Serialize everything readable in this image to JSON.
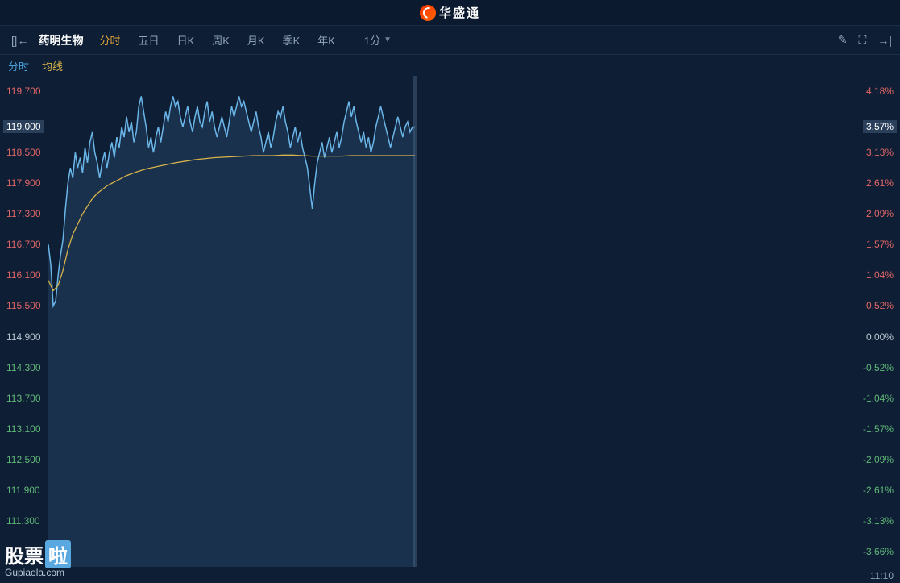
{
  "brand": "华盛通",
  "toolbar": {
    "stock_name": "药明生物",
    "tabs": [
      "分时",
      "五日",
      "日K",
      "周K",
      "月K",
      "季K",
      "年K"
    ],
    "active_tab_index": 0,
    "interval_label": "1分"
  },
  "legend": {
    "fenshi": "分时",
    "junxian": "均线"
  },
  "chart": {
    "type": "intraday-line",
    "background": "#0e1e35",
    "price_line_color": "#6bb6e8",
    "ma_line_color": "#d8b24a",
    "area_fill": "rgba(80,140,190,0.18)",
    "ref_line_color": "#d89a3a",
    "up_color": "#e06666",
    "down_color": "#5fb878",
    "neutral_color": "#b8c4d0",
    "prev_close": 114.9,
    "current_price": 119.0,
    "current_pct": "3.57%",
    "y_left_ticks": [
      {
        "v": 119.7,
        "label": "119.700",
        "color": "#e06666"
      },
      {
        "v": 119.0,
        "label": "119.000",
        "color": "#e06666",
        "tag": true
      },
      {
        "v": 118.5,
        "label": "118.500",
        "color": "#e06666"
      },
      {
        "v": 117.9,
        "label": "117.900",
        "color": "#e06666"
      },
      {
        "v": 117.3,
        "label": "117.300",
        "color": "#e06666"
      },
      {
        "v": 116.7,
        "label": "116.700",
        "color": "#e06666"
      },
      {
        "v": 116.1,
        "label": "116.100",
        "color": "#e06666"
      },
      {
        "v": 115.5,
        "label": "115.500",
        "color": "#e06666"
      },
      {
        "v": 114.9,
        "label": "114.900",
        "color": "#b8c4d0"
      },
      {
        "v": 114.3,
        "label": "114.300",
        "color": "#5fb878"
      },
      {
        "v": 113.7,
        "label": "113.700",
        "color": "#5fb878"
      },
      {
        "v": 113.1,
        "label": "113.100",
        "color": "#5fb878"
      },
      {
        "v": 112.5,
        "label": "112.500",
        "color": "#5fb878"
      },
      {
        "v": 111.9,
        "label": "111.900",
        "color": "#5fb878"
      },
      {
        "v": 111.3,
        "label": "111.300",
        "color": "#5fb878"
      }
    ],
    "y_right_ticks": [
      {
        "v": 119.7,
        "label": "4.18%",
        "color": "#e06666"
      },
      {
        "v": 119.0,
        "label": "3.57%",
        "color": "#ffffff",
        "tag": true
      },
      {
        "v": 118.5,
        "label": "3.13%",
        "color": "#e06666"
      },
      {
        "v": 117.9,
        "label": "2.61%",
        "color": "#e06666"
      },
      {
        "v": 117.3,
        "label": "2.09%",
        "color": "#e06666"
      },
      {
        "v": 116.7,
        "label": "1.57%",
        "color": "#e06666"
      },
      {
        "v": 116.1,
        "label": "1.04%",
        "color": "#e06666"
      },
      {
        "v": 115.5,
        "label": "0.52%",
        "color": "#e06666"
      },
      {
        "v": 114.9,
        "label": "0.00%",
        "color": "#b8c4d0"
      },
      {
        "v": 114.3,
        "label": "-0.52%",
        "color": "#5fb878"
      },
      {
        "v": 113.7,
        "label": "-1.04%",
        "color": "#5fb878"
      },
      {
        "v": 113.1,
        "label": "-1.57%",
        "color": "#5fb878"
      },
      {
        "v": 112.5,
        "label": "-2.09%",
        "color": "#5fb878"
      },
      {
        "v": 111.9,
        "label": "-2.61%",
        "color": "#5fb878"
      },
      {
        "v": 111.3,
        "label": "-3.13%",
        "color": "#5fb878"
      },
      {
        "v": 110.7,
        "label": "-3.66%",
        "color": "#5fb878"
      }
    ],
    "y_domain": [
      110.4,
      120.0
    ],
    "x_domain": [
      0,
      330
    ],
    "data_extent_x": 150,
    "x_end_label": "11:10",
    "price_series": [
      [
        0,
        116.7
      ],
      [
        1,
        116.3
      ],
      [
        2,
        115.5
      ],
      [
        3,
        115.6
      ],
      [
        4,
        116.1
      ],
      [
        5,
        116.5
      ],
      [
        6,
        116.8
      ],
      [
        7,
        117.4
      ],
      [
        8,
        117.9
      ],
      [
        9,
        118.2
      ],
      [
        10,
        118.0
      ],
      [
        11,
        118.5
      ],
      [
        12,
        118.2
      ],
      [
        13,
        118.4
      ],
      [
        14,
        118.1
      ],
      [
        15,
        118.6
      ],
      [
        16,
        118.3
      ],
      [
        17,
        118.7
      ],
      [
        18,
        118.9
      ],
      [
        19,
        118.5
      ],
      [
        20,
        118.3
      ],
      [
        21,
        118.0
      ],
      [
        22,
        118.3
      ],
      [
        23,
        118.5
      ],
      [
        24,
        118.2
      ],
      [
        25,
        118.5
      ],
      [
        26,
        118.7
      ],
      [
        27,
        118.4
      ],
      [
        28,
        118.8
      ],
      [
        29,
        118.6
      ],
      [
        30,
        119.0
      ],
      [
        31,
        118.8
      ],
      [
        32,
        119.2
      ],
      [
        33,
        118.9
      ],
      [
        34,
        119.1
      ],
      [
        35,
        118.7
      ],
      [
        36,
        118.9
      ],
      [
        37,
        119.4
      ],
      [
        38,
        119.6
      ],
      [
        39,
        119.3
      ],
      [
        40,
        119.0
      ],
      [
        41,
        118.6
      ],
      [
        42,
        118.8
      ],
      [
        43,
        118.5
      ],
      [
        44,
        118.8
      ],
      [
        45,
        119.0
      ],
      [
        46,
        118.7
      ],
      [
        47,
        119.0
      ],
      [
        48,
        119.3
      ],
      [
        49,
        119.1
      ],
      [
        50,
        119.4
      ],
      [
        51,
        119.6
      ],
      [
        52,
        119.4
      ],
      [
        53,
        119.5
      ],
      [
        54,
        119.2
      ],
      [
        55,
        119.0
      ],
      [
        56,
        119.2
      ],
      [
        57,
        119.4
      ],
      [
        58,
        119.1
      ],
      [
        59,
        118.9
      ],
      [
        60,
        119.2
      ],
      [
        61,
        119.4
      ],
      [
        62,
        119.1
      ],
      [
        63,
        119.0
      ],
      [
        64,
        119.3
      ],
      [
        65,
        119.5
      ],
      [
        66,
        119.1
      ],
      [
        67,
        119.3
      ],
      [
        68,
        119.0
      ],
      [
        69,
        118.8
      ],
      [
        70,
        119.0
      ],
      [
        71,
        119.2
      ],
      [
        72,
        119.0
      ],
      [
        73,
        118.8
      ],
      [
        74,
        119.1
      ],
      [
        75,
        119.4
      ],
      [
        76,
        119.2
      ],
      [
        77,
        119.4
      ],
      [
        78,
        119.6
      ],
      [
        79,
        119.4
      ],
      [
        80,
        119.5
      ],
      [
        81,
        119.3
      ],
      [
        82,
        119.1
      ],
      [
        83,
        118.9
      ],
      [
        84,
        119.1
      ],
      [
        85,
        119.3
      ],
      [
        86,
        119.0
      ],
      [
        87,
        118.8
      ],
      [
        88,
        118.5
      ],
      [
        89,
        118.7
      ],
      [
        90,
        118.9
      ],
      [
        91,
        118.6
      ],
      [
        92,
        118.8
      ],
      [
        93,
        119.1
      ],
      [
        94,
        119.3
      ],
      [
        95,
        119.2
      ],
      [
        96,
        119.4
      ],
      [
        97,
        119.1
      ],
      [
        98,
        118.9
      ],
      [
        99,
        118.6
      ],
      [
        100,
        118.8
      ],
      [
        101,
        119.0
      ],
      [
        102,
        118.7
      ],
      [
        103,
        118.9
      ],
      [
        104,
        118.6
      ],
      [
        105,
        118.4
      ],
      [
        106,
        118.2
      ],
      [
        107,
        117.8
      ],
      [
        108,
        117.4
      ],
      [
        109,
        117.9
      ],
      [
        110,
        118.3
      ],
      [
        111,
        118.5
      ],
      [
        112,
        118.7
      ],
      [
        113,
        118.4
      ],
      [
        114,
        118.6
      ],
      [
        115,
        118.8
      ],
      [
        116,
        118.5
      ],
      [
        117,
        118.7
      ],
      [
        118,
        118.9
      ],
      [
        119,
        118.6
      ],
      [
        120,
        118.8
      ],
      [
        121,
        119.1
      ],
      [
        122,
        119.3
      ],
      [
        123,
        119.5
      ],
      [
        124,
        119.2
      ],
      [
        125,
        119.4
      ],
      [
        126,
        119.1
      ],
      [
        127,
        118.9
      ],
      [
        128,
        118.7
      ],
      [
        129,
        118.9
      ],
      [
        130,
        118.6
      ],
      [
        131,
        118.8
      ],
      [
        132,
        118.5
      ],
      [
        133,
        118.7
      ],
      [
        134,
        119.0
      ],
      [
        135,
        119.2
      ],
      [
        136,
        119.4
      ],
      [
        137,
        119.2
      ],
      [
        138,
        119.0
      ],
      [
        139,
        118.8
      ],
      [
        140,
        118.6
      ],
      [
        141,
        118.8
      ],
      [
        142,
        119.0
      ],
      [
        143,
        119.2
      ],
      [
        144,
        119.0
      ],
      [
        145,
        118.8
      ],
      [
        146,
        119.0
      ],
      [
        147,
        119.1
      ],
      [
        148,
        118.9
      ],
      [
        149,
        119.0
      ],
      [
        150,
        119.0
      ]
    ],
    "ma_series": [
      [
        0,
        116.0
      ],
      [
        2,
        115.8
      ],
      [
        4,
        115.9
      ],
      [
        6,
        116.2
      ],
      [
        8,
        116.6
      ],
      [
        10,
        116.9
      ],
      [
        12,
        117.1
      ],
      [
        14,
        117.3
      ],
      [
        16,
        117.45
      ],
      [
        18,
        117.6
      ],
      [
        20,
        117.7
      ],
      [
        24,
        117.85
      ],
      [
        28,
        117.95
      ],
      [
        32,
        118.05
      ],
      [
        36,
        118.12
      ],
      [
        40,
        118.18
      ],
      [
        44,
        118.22
      ],
      [
        48,
        118.26
      ],
      [
        52,
        118.3
      ],
      [
        56,
        118.33
      ],
      [
        60,
        118.36
      ],
      [
        64,
        118.38
      ],
      [
        68,
        118.4
      ],
      [
        72,
        118.41
      ],
      [
        76,
        118.42
      ],
      [
        80,
        118.43
      ],
      [
        84,
        118.44
      ],
      [
        88,
        118.44
      ],
      [
        92,
        118.44
      ],
      [
        96,
        118.45
      ],
      [
        100,
        118.45
      ],
      [
        104,
        118.44
      ],
      [
        108,
        118.43
      ],
      [
        112,
        118.43
      ],
      [
        116,
        118.43
      ],
      [
        120,
        118.43
      ],
      [
        124,
        118.44
      ],
      [
        128,
        118.44
      ],
      [
        132,
        118.44
      ],
      [
        136,
        118.44
      ],
      [
        140,
        118.44
      ],
      [
        144,
        118.44
      ],
      [
        148,
        118.44
      ],
      [
        150,
        118.44
      ]
    ]
  },
  "watermark": {
    "text": "股票",
    "la": "啦",
    "url": "Gupiaola.com"
  }
}
